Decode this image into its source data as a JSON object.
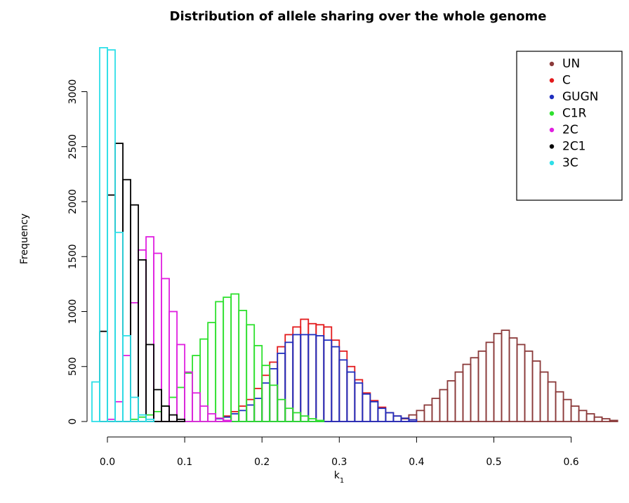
{
  "chart_data": {
    "type": "histogram",
    "title": "Distribution of allele sharing over the whole genome",
    "xlabel": "k",
    "xlabel_subscript": "1",
    "ylabel": "Frequency",
    "xlim": [
      -0.02,
      0.66
    ],
    "ylim": [
      0,
      3420
    ],
    "bin_width": 0.01,
    "x_ticks": [
      0.0,
      0.1,
      0.2,
      0.3,
      0.4,
      0.5,
      0.6
    ],
    "x_tick_labels": [
      "0.0",
      "0.1",
      "0.2",
      "0.3",
      "0.4",
      "0.5",
      "0.6"
    ],
    "y_ticks": [
      0,
      500,
      1000,
      1500,
      2000,
      2500,
      3000
    ],
    "y_tick_labels": [
      "0",
      "500",
      "1000",
      "1500",
      "2000",
      "2500",
      "3000"
    ],
    "legend_position": "top-right",
    "legend_marker": "•",
    "series": [
      {
        "name": "UN",
        "color": "#8b3a3a",
        "bin_start": 0.38,
        "counts": [
          25,
          60,
          100,
          150,
          210,
          290,
          370,
          450,
          520,
          580,
          640,
          720,
          800,
          830,
          760,
          700,
          640,
          550,
          450,
          360,
          270,
          200,
          140,
          100,
          70,
          40,
          25,
          10
        ]
      },
      {
        "name": "C",
        "color": "#e31a1c",
        "bin_start": 0.14,
        "counts": [
          30,
          50,
          90,
          140,
          200,
          300,
          420,
          540,
          680,
          790,
          860,
          930,
          890,
          880,
          860,
          740,
          640,
          500,
          380,
          260,
          190,
          130,
          80,
          50,
          30,
          15
        ]
      },
      {
        "name": "GUGN",
        "color": "#1f2fbf",
        "bin_start": 0.14,
        "counts": [
          25,
          40,
          70,
          100,
          150,
          210,
          350,
          480,
          620,
          720,
          790,
          790,
          790,
          780,
          740,
          680,
          560,
          450,
          350,
          250,
          180,
          120,
          80,
          50,
          30,
          15
        ]
      },
      {
        "name": "C1R",
        "color": "#2ee02e",
        "bin_start": 0.03,
        "counts": [
          20,
          40,
          60,
          90,
          140,
          220,
          310,
          440,
          600,
          750,
          900,
          1090,
          1130,
          1160,
          1010,
          880,
          690,
          510,
          330,
          200,
          120,
          80,
          50,
          25,
          10
        ]
      },
      {
        "name": "2C",
        "color": "#e020e0",
        "bin_start": 0.0,
        "counts": [
          20,
          180,
          600,
          1080,
          1560,
          1680,
          1530,
          1300,
          1000,
          700,
          450,
          260,
          140,
          70,
          30,
          10
        ]
      },
      {
        "name": "2C1",
        "color": "#000000",
        "bin_start": -0.01,
        "counts": [
          820,
          2060,
          2530,
          2200,
          1970,
          1470,
          700,
          290,
          140,
          60,
          20
        ]
      },
      {
        "name": "3C",
        "color": "#2fdfe8",
        "bin_start": -0.02,
        "counts": [
          360,
          3400,
          3380,
          1720,
          780,
          220,
          60,
          20
        ]
      }
    ]
  }
}
